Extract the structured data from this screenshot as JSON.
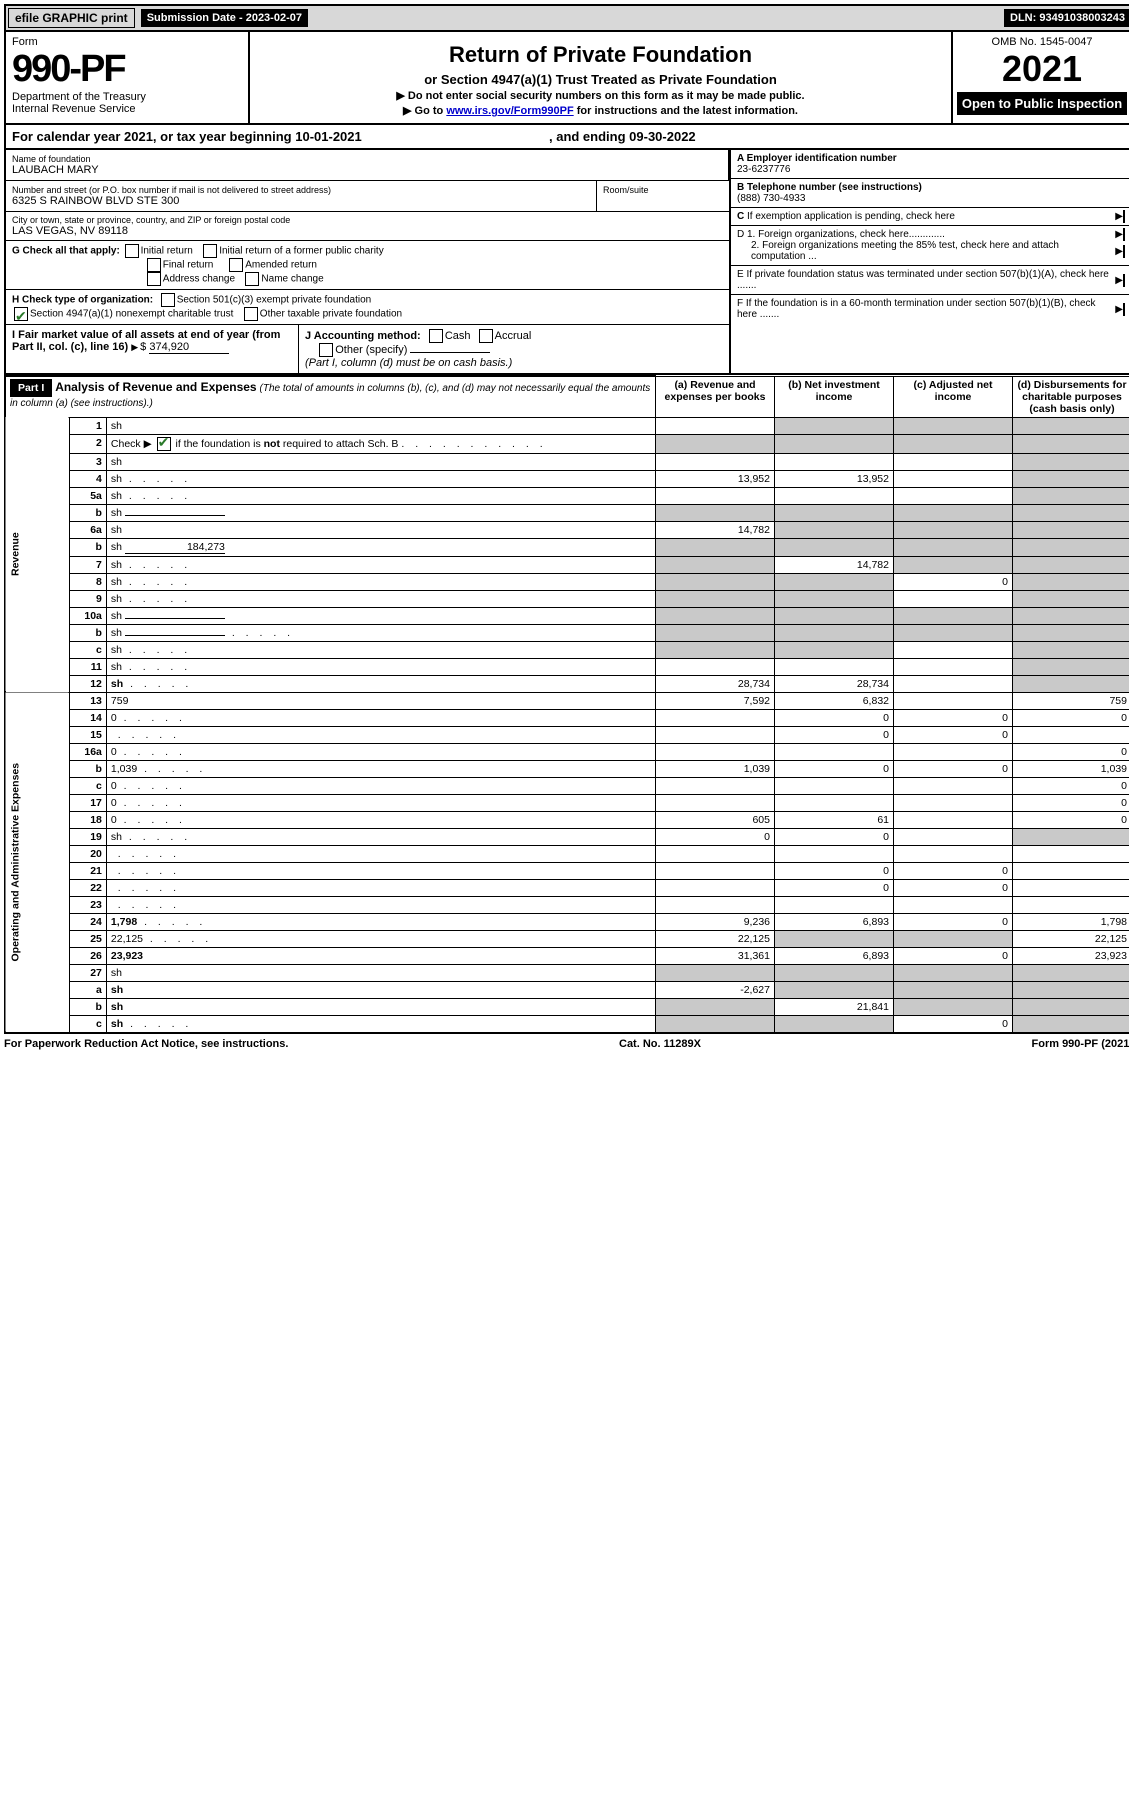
{
  "topbar": {
    "efile": "efile GRAPHIC print",
    "submission_label": "Submission Date - 2023-02-07",
    "dln": "DLN: 93491038003243"
  },
  "header": {
    "form_label": "Form",
    "form_number": "990-PF",
    "dept": "Department of the Treasury",
    "irs": "Internal Revenue Service",
    "title": "Return of Private Foundation",
    "subtitle": "or Section 4947(a)(1) Trust Treated as Private Foundation",
    "notice1": "▶ Do not enter social security numbers on this form as it may be made public.",
    "notice2a": "▶ Go to ",
    "notice2_link": "www.irs.gov/Form990PF",
    "notice2b": " for instructions and the latest information.",
    "omb": "OMB No. 1545-0047",
    "year": "2021",
    "open": "Open to Public Inspection"
  },
  "calyear": {
    "pre": "For calendar year 2021, or tax year beginning ",
    "begin": "10-01-2021",
    "mid": " , and ending ",
    "end": "09-30-2022"
  },
  "entity": {
    "name_label": "Name of foundation",
    "name": "LAUBACH MARY",
    "addr_label": "Number and street (or P.O. box number if mail is not delivered to street address)",
    "addr": "6325 S RAINBOW BLVD STE 300",
    "room_label": "Room/suite",
    "city_label": "City or town, state or province, country, and ZIP or foreign postal code",
    "city": "LAS VEGAS, NV  89118",
    "a_label": "A Employer identification number",
    "a_val": "23-6237776",
    "b_label": "B Telephone number (see instructions)",
    "b_val": "(888) 730-4933",
    "c_text": "C If exemption application is pending, check here",
    "d1": "D 1. Foreign organizations, check here.............",
    "d2": "2. Foreign organizations meeting the 85% test, check here and attach computation ...",
    "e": "E  If private foundation status was terminated under section 507(b)(1)(A), check here .......",
    "f": "F  If the foundation is in a 60-month termination under section 507(b)(1)(B), check here .......",
    "g_label": "G Check all that apply:",
    "g_opts": [
      "Initial return",
      "Initial return of a former public charity",
      "Final return",
      "Amended return",
      "Address change",
      "Name change"
    ],
    "h_label": "H Check type of organization:",
    "h_opt1": "Section 501(c)(3) exempt private foundation",
    "h_opt2": "Section 4947(a)(1) nonexempt charitable trust",
    "h_opt3": "Other taxable private foundation",
    "i_label": "I Fair market value of all assets at end of year (from Part II, col. (c), line 16)",
    "i_val": "374,920",
    "j_label": "J Accounting method:",
    "j_cash": "Cash",
    "j_accrual": "Accrual",
    "j_other": "Other (specify)",
    "j_note": "(Part I, column (d) must be on cash basis.)"
  },
  "part1": {
    "label": "Part I",
    "title": "Analysis of Revenue and Expenses",
    "title_note": "(The total of amounts in columns (b), (c), and (d) may not necessarily equal the amounts in column (a) (see instructions).)",
    "col_a": "(a)   Revenue and expenses per books",
    "col_b": "(b)   Net investment income",
    "col_c": "(c)   Adjusted net income",
    "col_d": "(d)  Disbursements for charitable purposes (cash basis only)",
    "side_rev": "Revenue",
    "side_exp": "Operating and Administrative Expenses"
  },
  "rows": [
    {
      "n": "1",
      "d": "sh",
      "a": "",
      "b": "sh",
      "c": "sh"
    },
    {
      "n": "2",
      "d": "sh",
      "dots": true,
      "a": "sh",
      "b": "sh",
      "c": "sh"
    },
    {
      "n": "3",
      "d": "sh",
      "a": "",
      "b": "",
      "c": ""
    },
    {
      "n": "4",
      "d": "sh",
      "dots": true,
      "a": "13,952",
      "b": "13,952",
      "c": ""
    },
    {
      "n": "5a",
      "d": "sh",
      "dots": true,
      "a": "",
      "b": "",
      "c": ""
    },
    {
      "n": "b",
      "d": "sh",
      "inline": true,
      "a": "sh",
      "b": "sh",
      "c": "sh"
    },
    {
      "n": "6a",
      "d": "sh",
      "a": "14,782",
      "b": "sh",
      "c": "sh"
    },
    {
      "n": "b",
      "d": "sh",
      "inline": true,
      "inlineval": "184,273",
      "a": "sh",
      "b": "sh",
      "c": "sh"
    },
    {
      "n": "7",
      "d": "sh",
      "dots": true,
      "a": "sh",
      "b": "14,782",
      "c": "sh"
    },
    {
      "n": "8",
      "d": "sh",
      "dots": true,
      "a": "sh",
      "b": "sh",
      "c": "0"
    },
    {
      "n": "9",
      "d": "sh",
      "dots": true,
      "a": "sh",
      "b": "sh",
      "c": ""
    },
    {
      "n": "10a",
      "d": "sh",
      "inline": true,
      "a": "sh",
      "b": "sh",
      "c": "sh"
    },
    {
      "n": "b",
      "d": "sh",
      "dots": true,
      "inline": true,
      "a": "sh",
      "b": "sh",
      "c": "sh"
    },
    {
      "n": "c",
      "d": "sh",
      "dots": true,
      "a": "sh",
      "b": "sh",
      "c": ""
    },
    {
      "n": "11",
      "d": "sh",
      "dots": true,
      "a": "",
      "b": "",
      "c": ""
    },
    {
      "n": "12",
      "d": "sh",
      "bold": true,
      "dots": true,
      "a": "28,734",
      "b": "28,734",
      "c": ""
    },
    {
      "n": "13",
      "d": "759",
      "a": "7,592",
      "b": "6,832",
      "c": ""
    },
    {
      "n": "14",
      "d": "0",
      "dots": true,
      "a": "",
      "b": "0",
      "c": "0"
    },
    {
      "n": "15",
      "d": "",
      "dots": true,
      "a": "",
      "b": "0",
      "c": "0"
    },
    {
      "n": "16a",
      "d": "0",
      "dots": true,
      "a": "",
      "b": "",
      "c": ""
    },
    {
      "n": "b",
      "d": "1,039",
      "dots": true,
      "a": "1,039",
      "b": "0",
      "c": "0"
    },
    {
      "n": "c",
      "d": "0",
      "dots": true,
      "a": "",
      "b": "",
      "c": ""
    },
    {
      "n": "17",
      "d": "0",
      "dots": true,
      "a": "",
      "b": "",
      "c": ""
    },
    {
      "n": "18",
      "d": "0",
      "dots": true,
      "a": "605",
      "b": "61",
      "c": ""
    },
    {
      "n": "19",
      "d": "sh",
      "dots": true,
      "a": "0",
      "b": "0",
      "c": ""
    },
    {
      "n": "20",
      "d": "",
      "dots": true,
      "a": "",
      "b": "",
      "c": ""
    },
    {
      "n": "21",
      "d": "",
      "dots": true,
      "a": "",
      "b": "0",
      "c": "0"
    },
    {
      "n": "22",
      "d": "",
      "dots": true,
      "a": "",
      "b": "0",
      "c": "0"
    },
    {
      "n": "23",
      "d": "",
      "dots": true,
      "a": "",
      "b": "",
      "c": ""
    },
    {
      "n": "24",
      "d": "1,798",
      "bold": true,
      "dots": true,
      "a": "9,236",
      "b": "6,893",
      "c": "0"
    },
    {
      "n": "25",
      "d": "22,125",
      "dots": true,
      "a": "22,125",
      "b": "sh",
      "c": "sh"
    },
    {
      "n": "26",
      "d": "23,923",
      "bold": true,
      "a": "31,361",
      "b": "6,893",
      "c": "0"
    },
    {
      "n": "27",
      "d": "sh",
      "a": "sh",
      "b": "sh",
      "c": "sh"
    },
    {
      "n": "a",
      "d": "sh",
      "bold": true,
      "a": "-2,627",
      "b": "sh",
      "c": "sh"
    },
    {
      "n": "b",
      "d": "sh",
      "bold": true,
      "a": "sh",
      "b": "21,841",
      "c": "sh"
    },
    {
      "n": "c",
      "d": "sh",
      "bold": true,
      "dots": true,
      "a": "sh",
      "b": "sh",
      "c": "0"
    }
  ],
  "footer": {
    "left": "For Paperwork Reduction Act Notice, see instructions.",
    "mid": "Cat. No. 11289X",
    "right": "Form 990-PF (2021)"
  },
  "colors": {
    "shade": "#c9c9c9",
    "green": "#2a7a2a",
    "link": "#0000cc"
  }
}
